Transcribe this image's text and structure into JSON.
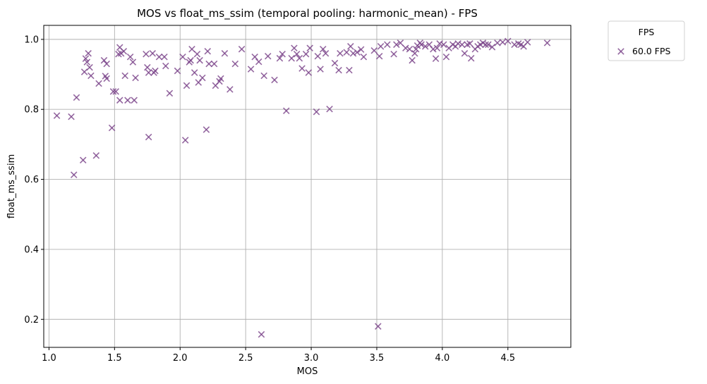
{
  "chart_data": {
    "type": "scatter",
    "title": "MOS vs float_ms_ssim (temporal pooling: harmonic_mean) - FPS",
    "xlabel": "MOS",
    "ylabel": "float_ms_ssim",
    "xlim": [
      0.96,
      4.98
    ],
    "ylim": [
      0.12,
      1.04
    ],
    "xticks": [
      1.0,
      1.5,
      2.0,
      2.5,
      3.0,
      3.5,
      4.0,
      4.5
    ],
    "xtick_labels": [
      "1.0",
      "1.5",
      "2.0",
      "2.5",
      "3.0",
      "3.5",
      "4.0",
      "4.5"
    ],
    "yticks": [
      0.2,
      0.4,
      0.6,
      0.8,
      1.0
    ],
    "ytick_labels": [
      "0.2",
      "0.4",
      "0.6",
      "0.8",
      "1.0"
    ],
    "grid": true,
    "marker": "x",
    "marker_color": "#8e5a9e",
    "legend": {
      "title": "FPS",
      "placement": "outside-upper-right",
      "entries": [
        "60.0 FPS"
      ]
    },
    "series": [
      {
        "name": "60.0 FPS",
        "color": "#7a4389",
        "points": [
          [
            1.06,
            0.782
          ],
          [
            1.17,
            0.779
          ],
          [
            1.19,
            0.613
          ],
          [
            1.21,
            0.834
          ],
          [
            1.26,
            0.655
          ],
          [
            1.27,
            0.907
          ],
          [
            1.28,
            0.945
          ],
          [
            1.29,
            0.935
          ],
          [
            1.3,
            0.96
          ],
          [
            1.31,
            0.92
          ],
          [
            1.32,
            0.896
          ],
          [
            1.36,
            0.668
          ],
          [
            1.38,
            0.874
          ],
          [
            1.42,
            0.94
          ],
          [
            1.43,
            0.895
          ],
          [
            1.44,
            0.93
          ],
          [
            1.44,
            0.888
          ],
          [
            1.48,
            0.747
          ],
          [
            1.49,
            0.851
          ],
          [
            1.51,
            0.851
          ],
          [
            1.53,
            0.958
          ],
          [
            1.54,
            0.977
          ],
          [
            1.54,
            0.826
          ],
          [
            1.55,
            0.96
          ],
          [
            1.57,
            0.966
          ],
          [
            1.58,
            0.896
          ],
          [
            1.6,
            0.826
          ],
          [
            1.62,
            0.95
          ],
          [
            1.64,
            0.935
          ],
          [
            1.65,
            0.826
          ],
          [
            1.66,
            0.89
          ],
          [
            1.74,
            0.958
          ],
          [
            1.75,
            0.92
          ],
          [
            1.76,
            0.721
          ],
          [
            1.76,
            0.905
          ],
          [
            1.79,
            0.96
          ],
          [
            1.8,
            0.905
          ],
          [
            1.81,
            0.91
          ],
          [
            1.84,
            0.95
          ],
          [
            1.88,
            0.95
          ],
          [
            1.89,
            0.924
          ],
          [
            1.92,
            0.846
          ],
          [
            1.98,
            0.91
          ],
          [
            2.02,
            0.95
          ],
          [
            2.04,
            0.712
          ],
          [
            2.05,
            0.868
          ],
          [
            2.07,
            0.935
          ],
          [
            2.08,
            0.94
          ],
          [
            2.09,
            0.972
          ],
          [
            2.11,
            0.905
          ],
          [
            2.13,
            0.958
          ],
          [
            2.14,
            0.877
          ],
          [
            2.15,
            0.94
          ],
          [
            2.17,
            0.89
          ],
          [
            2.2,
            0.742
          ],
          [
            2.21,
            0.966
          ],
          [
            2.22,
            0.93
          ],
          [
            2.26,
            0.93
          ],
          [
            2.27,
            0.868
          ],
          [
            2.3,
            0.88
          ],
          [
            2.31,
            0.888
          ],
          [
            2.34,
            0.96
          ],
          [
            2.38,
            0.857
          ],
          [
            2.42,
            0.93
          ],
          [
            2.47,
            0.972
          ],
          [
            2.54,
            0.915
          ],
          [
            2.57,
            0.95
          ],
          [
            2.6,
            0.936
          ],
          [
            2.62,
            0.157
          ],
          [
            2.64,
            0.896
          ],
          [
            2.67,
            0.952
          ],
          [
            2.72,
            0.884
          ],
          [
            2.76,
            0.946
          ],
          [
            2.78,
            0.958
          ],
          [
            2.81,
            0.796
          ],
          [
            2.85,
            0.946
          ],
          [
            2.87,
            0.975
          ],
          [
            2.89,
            0.958
          ],
          [
            2.91,
            0.946
          ],
          [
            2.93,
            0.917
          ],
          [
            2.96,
            0.958
          ],
          [
            2.98,
            0.905
          ],
          [
            2.99,
            0.975
          ],
          [
            3.04,
            0.793
          ],
          [
            3.05,
            0.952
          ],
          [
            3.07,
            0.915
          ],
          [
            3.09,
            0.972
          ],
          [
            3.11,
            0.96
          ],
          [
            3.14,
            0.801
          ],
          [
            3.18,
            0.932
          ],
          [
            3.21,
            0.912
          ],
          [
            3.22,
            0.96
          ],
          [
            3.27,
            0.963
          ],
          [
            3.29,
            0.912
          ],
          [
            3.3,
            0.98
          ],
          [
            3.32,
            0.96
          ],
          [
            3.35,
            0.963
          ],
          [
            3.38,
            0.971
          ],
          [
            3.4,
            0.95
          ],
          [
            3.48,
            0.968
          ],
          [
            3.51,
            0.18
          ],
          [
            3.52,
            0.952
          ],
          [
            3.53,
            0.98
          ],
          [
            3.58,
            0.985
          ],
          [
            3.63,
            0.958
          ],
          [
            3.65,
            0.985
          ],
          [
            3.68,
            0.99
          ],
          [
            3.72,
            0.975
          ],
          [
            3.75,
            0.972
          ],
          [
            3.77,
            0.94
          ],
          [
            3.79,
            0.96
          ],
          [
            3.8,
            0.972
          ],
          [
            3.81,
            0.982
          ],
          [
            3.83,
            0.99
          ],
          [
            3.84,
            0.985
          ],
          [
            3.87,
            0.98
          ],
          [
            3.9,
            0.985
          ],
          [
            3.93,
            0.972
          ],
          [
            3.95,
            0.945
          ],
          [
            3.96,
            0.975
          ],
          [
            3.98,
            0.988
          ],
          [
            4.01,
            0.985
          ],
          [
            4.03,
            0.95
          ],
          [
            4.05,
            0.975
          ],
          [
            4.08,
            0.985
          ],
          [
            4.1,
            0.98
          ],
          [
            4.12,
            0.988
          ],
          [
            4.15,
            0.985
          ],
          [
            4.17,
            0.96
          ],
          [
            4.19,
            0.985
          ],
          [
            4.21,
            0.988
          ],
          [
            4.22,
            0.946
          ],
          [
            4.25,
            0.972
          ],
          [
            4.27,
            0.98
          ],
          [
            4.29,
            0.985
          ],
          [
            4.31,
            0.99
          ],
          [
            4.33,
            0.985
          ],
          [
            4.35,
            0.985
          ],
          [
            4.38,
            0.978
          ],
          [
            4.42,
            0.99
          ],
          [
            4.46,
            0.992
          ],
          [
            4.5,
            0.995
          ],
          [
            4.55,
            0.985
          ],
          [
            4.58,
            0.988
          ],
          [
            4.6,
            0.985
          ],
          [
            4.62,
            0.98
          ],
          [
            4.65,
            0.992
          ],
          [
            4.8,
            0.99
          ]
        ]
      }
    ]
  }
}
